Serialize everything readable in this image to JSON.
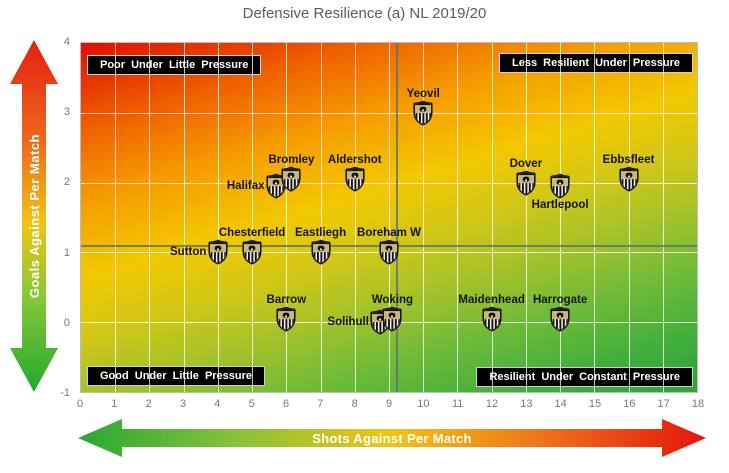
{
  "title": "Defensive Resilience (a) NL 2019/20",
  "axes": {
    "x": {
      "label": "Shots Against Per Match",
      "min": 0,
      "max": 18,
      "ticks": [
        0,
        1,
        2,
        3,
        4,
        5,
        6,
        7,
        8,
        9,
        10,
        11,
        12,
        13,
        14,
        15,
        16,
        17,
        18
      ]
    },
    "y": {
      "label": "Goals Against Per Match",
      "min": -1,
      "max": 4,
      "ticks": [
        4,
        3,
        2,
        1,
        0,
        -1
      ]
    }
  },
  "quadrant_labels": {
    "top_left": "Poor Under Little Pressure",
    "top_right": "Less Resilient Under Pressure",
    "bottom_left": "Good Under Little Pressure",
    "bottom_right": "Resilient Under Constant Pressure"
  },
  "reference_lines": {
    "avg_goals_against": 1.11,
    "avg_shots_against": 9.2
  },
  "chart_data": {
    "type": "scatter",
    "title": "Defensive Resilience (a) NL 2019/20",
    "xlabel": "Shots Against Per Match",
    "ylabel": "Goals Against Per Match",
    "xlim": [
      0,
      18
    ],
    "ylim": [
      -1,
      4
    ],
    "grid": true,
    "marker": "club-crest-badge",
    "points": [
      {
        "team": "Sutton",
        "x": 4,
        "y": 1.0,
        "label_pos": "left"
      },
      {
        "team": "Chesterfield",
        "x": 5,
        "y": 1.0,
        "label_pos": "above"
      },
      {
        "team": "Eastliegh",
        "x": 7,
        "y": 1.0,
        "label_pos": "above"
      },
      {
        "team": "Boreham W",
        "x": 9,
        "y": 1.0,
        "label_pos": "above"
      },
      {
        "team": "Halifax",
        "x": 5.7,
        "y": 1.95,
        "label_pos": "left"
      },
      {
        "team": "Bromley",
        "x": 6.15,
        "y": 2.05,
        "label_pos": "above"
      },
      {
        "team": "Aldershot",
        "x": 8,
        "y": 2.05,
        "label_pos": "above"
      },
      {
        "team": "Yeovil",
        "x": 10,
        "y": 3.0,
        "label_pos": "above"
      },
      {
        "team": "Dover",
        "x": 13,
        "y": 2.0,
        "label_pos": "above"
      },
      {
        "team": "Hartlepool",
        "x": 14,
        "y": 1.95,
        "label_pos": "below"
      },
      {
        "team": "Ebbsfleet",
        "x": 16,
        "y": 2.05,
        "label_pos": "above"
      },
      {
        "team": "Barrow",
        "x": 6,
        "y": 0.05,
        "label_pos": "above"
      },
      {
        "team": "Solihull",
        "x": 8.75,
        "y": 0.0,
        "label_pos": "left"
      },
      {
        "team": "Woking",
        "x": 9.1,
        "y": 0.05,
        "label_pos": "above"
      },
      {
        "team": "Maidenhead",
        "x": 12,
        "y": 0.05,
        "label_pos": "above"
      },
      {
        "team": "Harrogate",
        "x": 14,
        "y": 0.05,
        "label_pos": "above"
      }
    ]
  },
  "colors": {
    "title_text": "#5b5b5b",
    "tick_text": "#7a7a7a",
    "team_label_text": "#151515",
    "quadrant_box_bg": "#000000",
    "quadrant_box_text": "#ffffff",
    "gridline": "#ffffff",
    "reference_line": "#607376",
    "plot_top_left": "#e00d00",
    "plot_top_right": "#f59d00",
    "plot_bottom_left": "#6cba3a",
    "plot_bottom_right": "#2ea339",
    "badge_field": "#c9b87c",
    "arrow_red": "#e3150c",
    "arrow_green": "#22a92f"
  }
}
